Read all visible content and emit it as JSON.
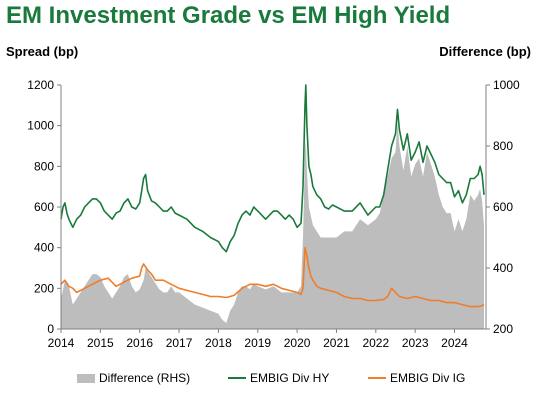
{
  "chart_data": {
    "type": "line",
    "title": "EM Investment Grade vs EM High Yield",
    "ylabel_left": "Spread (bp)",
    "ylabel_right": "Difference (bp)",
    "ylim_left": [
      0,
      1200
    ],
    "ylim_right": [
      200,
      1000
    ],
    "yticks_left": [
      "0",
      "200",
      "400",
      "600",
      "800",
      "1000",
      "1200"
    ],
    "yticks_right": [
      "200",
      "400",
      "600",
      "800",
      "1000"
    ],
    "x_ticks": [
      "2014",
      "2015",
      "2016",
      "2017",
      "2018",
      "2019",
      "2020",
      "2021",
      "2022",
      "2023",
      "2024"
    ],
    "xlim": [
      2014.0,
      2024.8
    ],
    "legend": [
      "Difference (RHS)",
      "EMBIG Div HY",
      "EMBIG Div IG"
    ],
    "legend_position": "bottom",
    "colors": {
      "title": "#1a7a3c",
      "difference": "#bdbdbd",
      "hy": "#1a7a3c",
      "ig": "#ef7d2b"
    },
    "series": [
      {
        "name": "EMBIG Div HY",
        "axis": "left",
        "x": [
          2014.0,
          2014.05,
          2014.1,
          2014.15,
          2014.2,
          2014.3,
          2014.4,
          2014.5,
          2014.6,
          2014.7,
          2014.8,
          2014.9,
          2015.0,
          2015.1,
          2015.2,
          2015.3,
          2015.4,
          2015.5,
          2015.6,
          2015.7,
          2015.8,
          2015.9,
          2016.0,
          2016.05,
          2016.1,
          2016.15,
          2016.2,
          2016.3,
          2016.4,
          2016.5,
          2016.6,
          2016.7,
          2016.8,
          2016.9,
          2017.0,
          2017.2,
          2017.4,
          2017.6,
          2017.8,
          2018.0,
          2018.1,
          2018.2,
          2018.3,
          2018.4,
          2018.5,
          2018.6,
          2018.7,
          2018.8,
          2018.9,
          2019.0,
          2019.1,
          2019.2,
          2019.3,
          2019.4,
          2019.5,
          2019.6,
          2019.7,
          2019.8,
          2019.9,
          2020.0,
          2020.1,
          2020.15,
          2020.2,
          2020.22,
          2020.25,
          2020.3,
          2020.35,
          2020.4,
          2020.5,
          2020.6,
          2020.7,
          2020.8,
          2020.9,
          2021.0,
          2021.2,
          2021.4,
          2021.6,
          2021.8,
          2022.0,
          2022.1,
          2022.2,
          2022.3,
          2022.4,
          2022.5,
          2022.55,
          2022.6,
          2022.7,
          2022.8,
          2022.9,
          2023.0,
          2023.1,
          2023.2,
          2023.3,
          2023.4,
          2023.5,
          2023.6,
          2023.7,
          2023.8,
          2023.9,
          2024.0,
          2024.1,
          2024.2,
          2024.3,
          2024.4,
          2024.5,
          2024.6,
          2024.65,
          2024.7,
          2024.75
        ],
        "values": [
          540,
          600,
          620,
          570,
          540,
          500,
          540,
          560,
          600,
          620,
          640,
          640,
          620,
          580,
          560,
          540,
          570,
          580,
          620,
          640,
          600,
          590,
          620,
          680,
          740,
          760,
          680,
          630,
          620,
          600,
          580,
          580,
          600,
          570,
          560,
          540,
          500,
          480,
          450,
          430,
          400,
          380,
          430,
          460,
          520,
          560,
          580,
          560,
          600,
          580,
          560,
          540,
          560,
          580,
          580,
          560,
          540,
          560,
          540,
          500,
          520,
          700,
          1100,
          1200,
          1000,
          800,
          760,
          700,
          660,
          640,
          600,
          590,
          610,
          600,
          580,
          580,
          620,
          560,
          600,
          600,
          660,
          780,
          900,
          960,
          1080,
          980,
          880,
          960,
          830,
          870,
          920,
          820,
          900,
          860,
          820,
          760,
          740,
          720,
          720,
          650,
          680,
          620,
          660,
          740,
          740,
          760,
          800,
          760,
          660
        ],
        "values_note": ""
      },
      {
        "name": "EMBIG Div IG",
        "axis": "left",
        "x": [
          2014.0,
          2014.1,
          2014.2,
          2014.3,
          2014.4,
          2014.5,
          2014.6,
          2014.7,
          2014.8,
          2014.9,
          2015.0,
          2015.2,
          2015.4,
          2015.6,
          2015.8,
          2016.0,
          2016.05,
          2016.1,
          2016.2,
          2016.3,
          2016.4,
          2016.6,
          2016.8,
          2017.0,
          2017.2,
          2017.4,
          2017.6,
          2017.8,
          2018.0,
          2018.2,
          2018.4,
          2018.6,
          2018.8,
          2019.0,
          2019.2,
          2019.4,
          2019.6,
          2019.8,
          2020.0,
          2020.1,
          2020.15,
          2020.2,
          2020.25,
          2020.3,
          2020.35,
          2020.4,
          2020.5,
          2020.6,
          2020.8,
          2021.0,
          2021.2,
          2021.4,
          2021.6,
          2021.8,
          2022.0,
          2022.2,
          2022.3,
          2022.4,
          2022.6,
          2022.8,
          2023.0,
          2023.2,
          2023.4,
          2023.6,
          2023.8,
          2024.0,
          2024.2,
          2024.4,
          2024.6,
          2024.7,
          2024.75
        ],
        "values": [
          220,
          240,
          210,
          200,
          180,
          190,
          200,
          210,
          220,
          230,
          240,
          250,
          210,
          230,
          250,
          260,
          300,
          320,
          290,
          270,
          240,
          240,
          220,
          200,
          190,
          180,
          170,
          160,
          160,
          155,
          165,
          200,
          220,
          220,
          210,
          220,
          200,
          190,
          180,
          170,
          200,
          400,
          360,
          300,
          260,
          240,
          210,
          200,
          190,
          180,
          160,
          150,
          150,
          140,
          140,
          145,
          160,
          200,
          160,
          150,
          160,
          150,
          140,
          140,
          130,
          130,
          120,
          110,
          110,
          115,
          120
        ],
        "values_note": ""
      },
      {
        "name": "Difference (RHS)",
        "axis": "right",
        "x": [
          2014.0,
          2014.05,
          2014.1,
          2014.2,
          2014.3,
          2014.4,
          2014.5,
          2014.6,
          2014.7,
          2014.8,
          2014.9,
          2015.0,
          2015.1,
          2015.2,
          2015.3,
          2015.4,
          2015.5,
          2015.6,
          2015.7,
          2015.8,
          2015.9,
          2016.0,
          2016.1,
          2016.15,
          2016.2,
          2016.3,
          2016.4,
          2016.5,
          2016.6,
          2016.7,
          2016.8,
          2016.9,
          2017.0,
          2017.2,
          2017.4,
          2017.6,
          2017.8,
          2018.0,
          2018.1,
          2018.2,
          2018.3,
          2018.4,
          2018.5,
          2018.6,
          2018.7,
          2018.8,
          2018.9,
          2019.0,
          2019.2,
          2019.4,
          2019.6,
          2019.8,
          2020.0,
          2020.1,
          2020.15,
          2020.2,
          2020.22,
          2020.25,
          2020.3,
          2020.4,
          2020.5,
          2020.6,
          2020.8,
          2021.0,
          2021.2,
          2021.4,
          2021.6,
          2021.8,
          2022.0,
          2022.1,
          2022.2,
          2022.3,
          2022.4,
          2022.5,
          2022.55,
          2022.6,
          2022.7,
          2022.8,
          2022.9,
          2023.0,
          2023.1,
          2023.2,
          2023.3,
          2023.4,
          2023.5,
          2023.6,
          2023.7,
          2023.8,
          2023.9,
          2024.0,
          2024.1,
          2024.2,
          2024.3,
          2024.4,
          2024.5,
          2024.6,
          2024.65,
          2024.7,
          2024.75
        ],
        "values": [
          300,
          330,
          360,
          340,
          280,
          300,
          320,
          340,
          360,
          380,
          380,
          370,
          340,
          320,
          300,
          320,
          340,
          370,
          380,
          340,
          320,
          330,
          360,
          400,
          390,
          370,
          350,
          330,
          320,
          320,
          340,
          320,
          320,
          300,
          280,
          270,
          260,
          250,
          230,
          220,
          260,
          280,
          320,
          340,
          340,
          330,
          350,
          340,
          330,
          340,
          320,
          320,
          320,
          340,
          500,
          780,
          820,
          720,
          600,
          540,
          520,
          500,
          500,
          500,
          520,
          520,
          560,
          540,
          560,
          580,
          640,
          700,
          760,
          780,
          880,
          800,
          720,
          800,
          700,
          740,
          760,
          700,
          780,
          740,
          700,
          640,
          600,
          580,
          580,
          520,
          560,
          520,
          560,
          640,
          620,
          640,
          660,
          620,
          540
        ],
        "values_note": ""
      }
    ]
  }
}
